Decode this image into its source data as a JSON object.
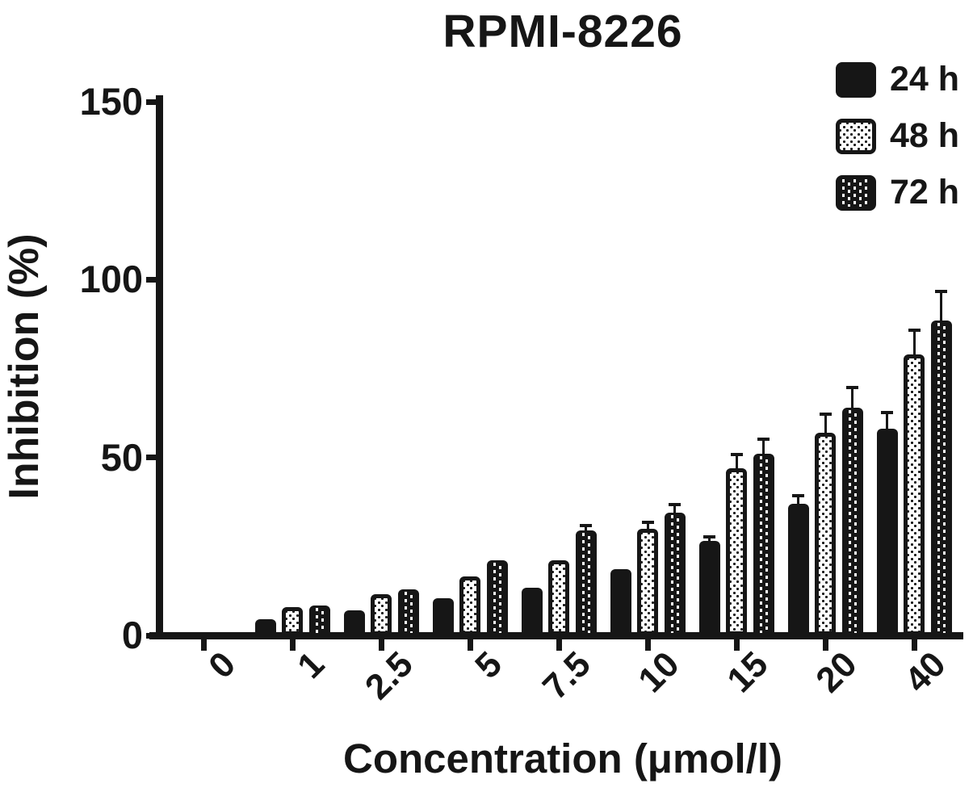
{
  "title": "RPMI-8226",
  "y_axis": {
    "label": "Inhibition (%)"
  },
  "x_axis": {
    "label": "Concentration (μmol/l)"
  },
  "legend": [
    {
      "label": "24 h",
      "pattern": "solid"
    },
    {
      "label": "48 h",
      "pattern": "dots"
    },
    {
      "label": "72 h",
      "pattern": "bricks"
    }
  ],
  "colors": {
    "ink": "#161616",
    "background": "#ffffff"
  },
  "chart_data": {
    "type": "bar",
    "title": "RPMI-8226",
    "xlabel": "Concentration (μmol/l)",
    "ylabel": "Inhibition (%)",
    "ylim": [
      0,
      150
    ],
    "yticks": [
      0,
      50,
      100,
      150
    ],
    "grid": false,
    "legend_position": "top-right",
    "categories": [
      "0",
      "1",
      "2.5",
      "5",
      "7.5",
      "10",
      "15",
      "20",
      "40"
    ],
    "series": [
      {
        "name": "24 h",
        "pattern": "solid",
        "values": [
          0,
          4.5,
          7,
          10.5,
          13.5,
          18.5,
          26.5,
          37,
          58
        ],
        "errors": [
          0,
          0,
          0,
          0,
          0,
          0,
          1,
          2,
          4.5
        ]
      },
      {
        "name": "48 h",
        "pattern": "dots",
        "values": [
          0,
          8,
          11.5,
          16.5,
          21,
          30,
          47,
          57,
          79
        ],
        "errors": [
          0,
          0,
          0,
          0,
          0,
          1.5,
          3.5,
          5,
          6.5
        ]
      },
      {
        "name": "72 h",
        "pattern": "bricks",
        "values": [
          0,
          8.5,
          13,
          21,
          29.5,
          34.5,
          51,
          64,
          88.5
        ],
        "errors": [
          0,
          0,
          0,
          0,
          1.2,
          2,
          4,
          5.5,
          8
        ]
      }
    ]
  }
}
